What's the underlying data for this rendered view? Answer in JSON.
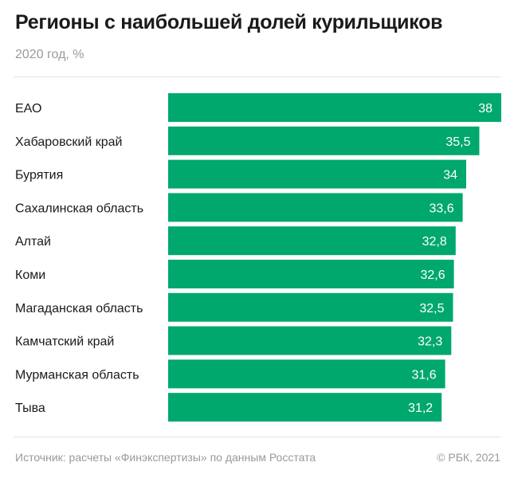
{
  "chart_data": {
    "type": "bar",
    "orientation": "horizontal",
    "title": "Регионы с наибольшей долей курильщиков",
    "subtitle": "2020 год, %",
    "categories": [
      "ЕАО",
      "Хабаровский край",
      "Бурятия",
      "Сахалинская область",
      "Алтай",
      "Коми",
      "Магаданская область",
      "Камчатский край",
      "Мурманская область",
      "Тыва"
    ],
    "values": [
      38,
      35.5,
      34,
      33.6,
      32.8,
      32.6,
      32.5,
      32.3,
      31.6,
      31.2
    ],
    "value_labels": [
      "38",
      "35,5",
      "34",
      "33,6",
      "32,8",
      "32,6",
      "32,5",
      "32,3",
      "31,6",
      "31,2"
    ],
    "xlim": [
      0,
      38
    ],
    "grid": false,
    "bar_color": "#00a86e",
    "label_color": "#ffffff"
  },
  "footer": {
    "source": "Источник: расчеты «Финэкспертизы» по данным Росстата",
    "copyright": "© РБК, 2021"
  }
}
